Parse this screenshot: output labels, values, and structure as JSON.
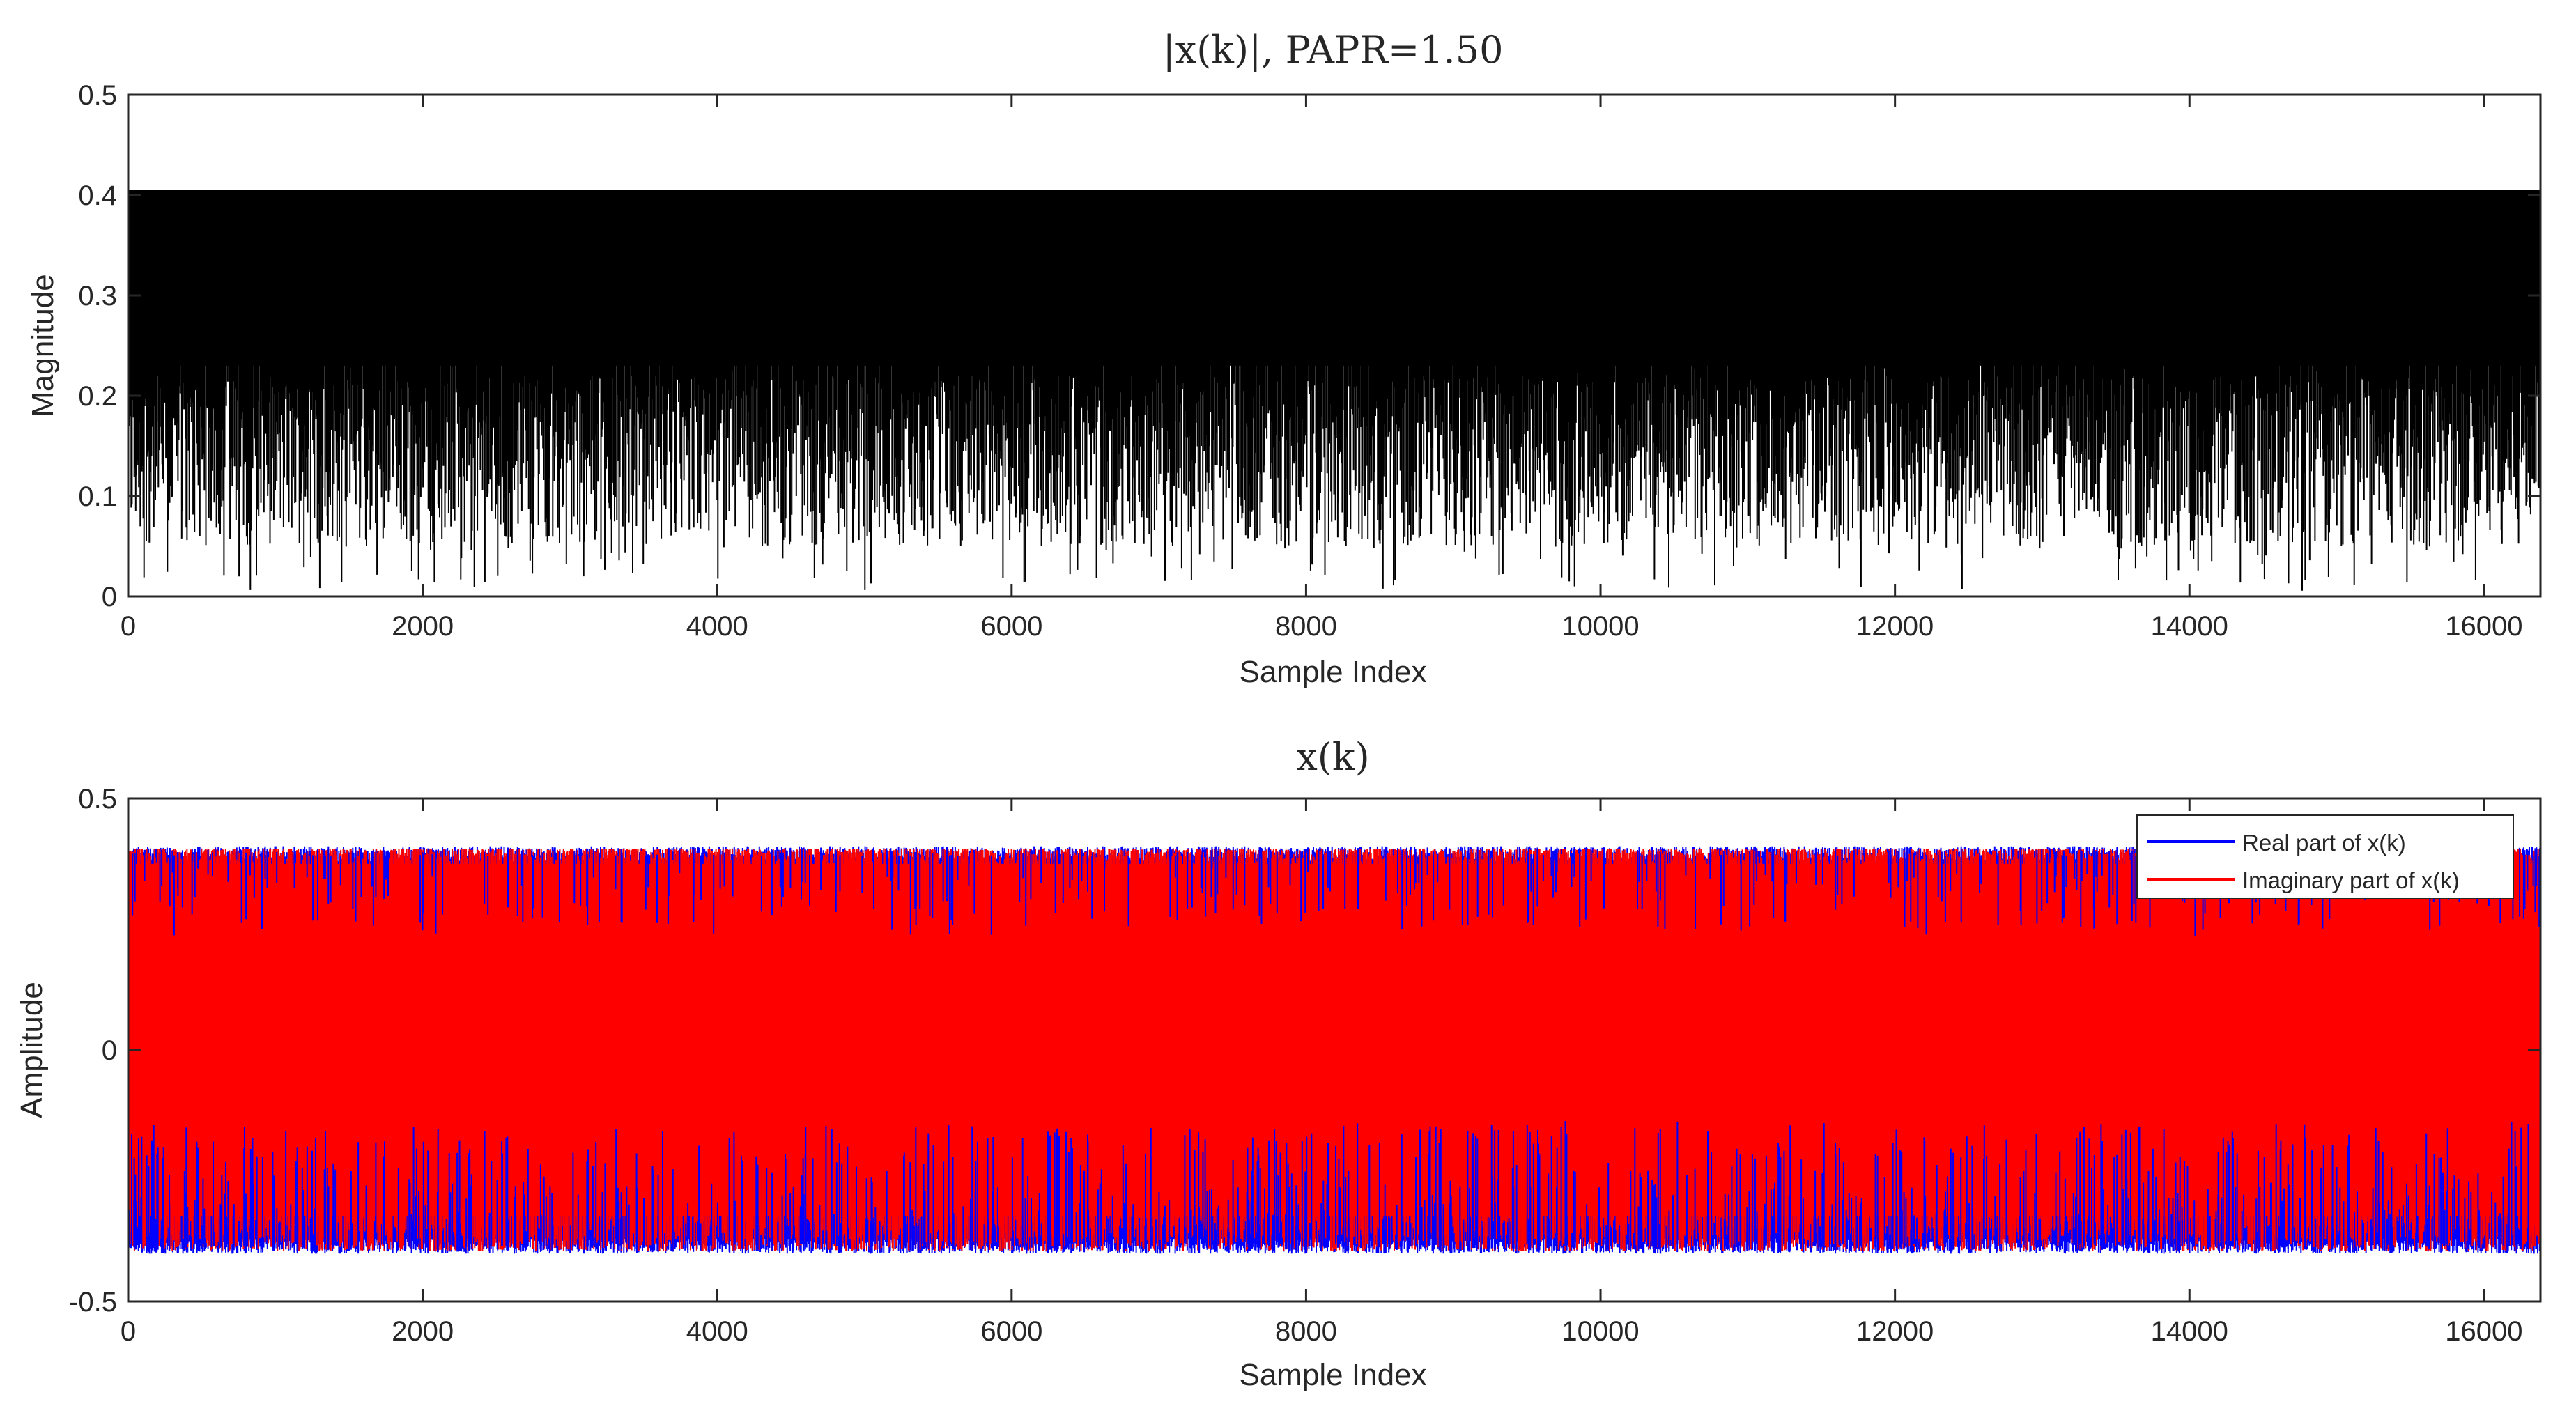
{
  "chart_data": [
    {
      "type": "line",
      "title": "|x(k)|, PAPR=1.50",
      "xlabel": "Sample Index",
      "ylabel": "Magnitude",
      "xlim": [
        0,
        16384
      ],
      "ylim": [
        0,
        0.5
      ],
      "xticks": [
        0,
        2000,
        4000,
        6000,
        8000,
        10000,
        12000,
        14000,
        16000
      ],
      "yticks": [
        0,
        0.1,
        0.2,
        0.3,
        0.4,
        0.5
      ],
      "xtick_labels": [
        "0",
        "2000",
        "4000",
        "6000",
        "8000",
        "10000",
        "12000",
        "14000",
        "16000"
      ],
      "ytick_labels": [
        "0",
        "0.1",
        "0.2",
        "0.3",
        "0.4",
        "0.5"
      ],
      "series": [
        {
          "name": "|x(k)|",
          "color": "#000000",
          "n_points": 16384,
          "max": 0.405,
          "min": 0.0,
          "typical_min": 0.05
        }
      ]
    },
    {
      "type": "line",
      "title": "x(k)",
      "xlabel": "Sample Index",
      "ylabel": "Amplitude",
      "xlim": [
        0,
        16384
      ],
      "ylim": [
        -0.5,
        0.5
      ],
      "xticks": [
        0,
        2000,
        4000,
        6000,
        8000,
        10000,
        12000,
        14000,
        16000
      ],
      "yticks": [
        -0.5,
        0,
        0.5
      ],
      "xtick_labels": [
        "0",
        "2000",
        "4000",
        "6000",
        "8000",
        "10000",
        "12000",
        "14000",
        "16000"
      ],
      "ytick_labels": [
        "-0.5",
        "0",
        "0.5"
      ],
      "legend": {
        "position": "top-right"
      },
      "series": [
        {
          "name": "Real part of x(k)",
          "color": "#0000ff",
          "n_points": 16384,
          "max": 0.405,
          "min": -0.405
        },
        {
          "name": "Imaginary part of x(k)",
          "color": "#ff0000",
          "n_points": 16384,
          "max": 0.4,
          "min": -0.4
        }
      ]
    }
  ]
}
